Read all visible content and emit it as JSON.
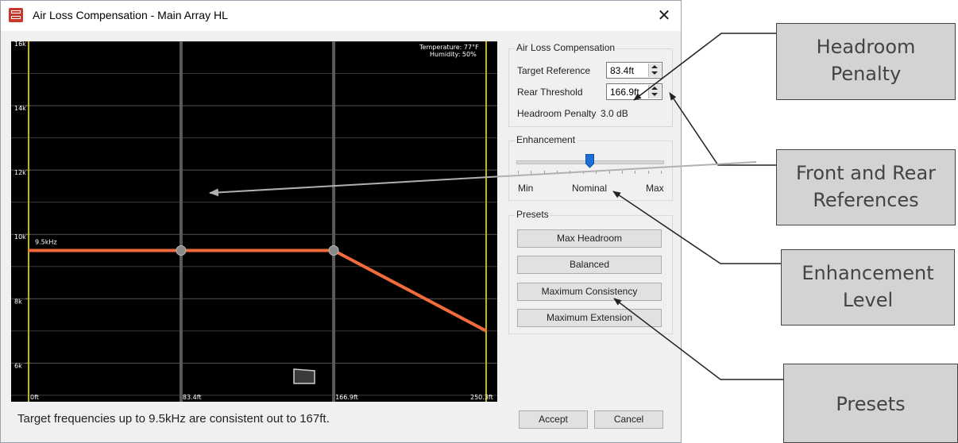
{
  "window": {
    "title": "Air Loss Compensation - Main Array HL",
    "close_glyph": "✕",
    "icon": "app-icon"
  },
  "plot": {
    "y_ticks": [
      {
        "label": "16k",
        "value": 16000
      },
      {
        "label": "14k",
        "value": 14000
      },
      {
        "label": "12k",
        "value": 12000
      },
      {
        "label": "10k",
        "value": 10000
      },
      {
        "label": "8k",
        "value": 8000
      },
      {
        "label": "6k",
        "value": 6000
      }
    ],
    "x_ticks": [
      {
        "label": "0ft",
        "value": 0
      },
      {
        "label": "83.4ft",
        "value": 83.4
      },
      {
        "label": "166.9ft",
        "value": 166.9
      },
      {
        "label": "250.3ft",
        "value": 250.3
      }
    ],
    "temperature": "Temperature: 77°F",
    "humidity": "Humidity: 50%",
    "freq_label": "9.5kHz",
    "colors": {
      "line": "#f26b3a",
      "handle": "#8a8a8a",
      "boundary": "#c8b400",
      "grid": "#5a5a5a"
    }
  },
  "chart_data": {
    "type": "line",
    "xlim": [
      0,
      250.3
    ],
    "ylim": [
      4800,
      16000
    ],
    "x": [
      0,
      83.4,
      166.9,
      250.3
    ],
    "y": [
      9500,
      9500,
      9500,
      7000
    ],
    "handles": [
      {
        "x": 83.4,
        "y": 9500
      },
      {
        "x": 166.9,
        "y": 9500
      }
    ],
    "annotations": [
      "9.5kHz",
      "Temperature: 77°F",
      "Humidity: 50%"
    ],
    "x_tick_labels": [
      "0ft",
      "83.4ft",
      "166.9ft",
      "250.3ft"
    ],
    "y_tick_labels": [
      "16k",
      "14k",
      "12k",
      "10k",
      "8k",
      "6k"
    ]
  },
  "status": "Target frequencies up to 9.5kHz are consistent out to 167ft.",
  "alc": {
    "group_label": "Air Loss Compensation",
    "target_label": "Target Reference",
    "target_value": "83.4ft",
    "rear_label": "Rear Threshold",
    "rear_value": "166.9ft",
    "headroom_label": "Headroom Penalty",
    "headroom_value": "3.0  dB"
  },
  "enhancement": {
    "group_label": "Enhancement",
    "min": "Min",
    "nominal": "Nominal",
    "max": "Max",
    "level": 0.5
  },
  "presets": {
    "group_label": "Presets",
    "buttons": [
      "Max Headroom",
      "Balanced",
      "Maximum Consistency",
      "Maximum Extension"
    ]
  },
  "footer": {
    "accept": "Accept",
    "cancel": "Cancel"
  },
  "callouts": {
    "headroom": [
      "Headroom",
      "Penalty"
    ],
    "references": [
      "Front and Rear",
      "References"
    ],
    "enhancement": [
      "Enhancement",
      "Level"
    ],
    "presets": [
      "Presets"
    ]
  }
}
